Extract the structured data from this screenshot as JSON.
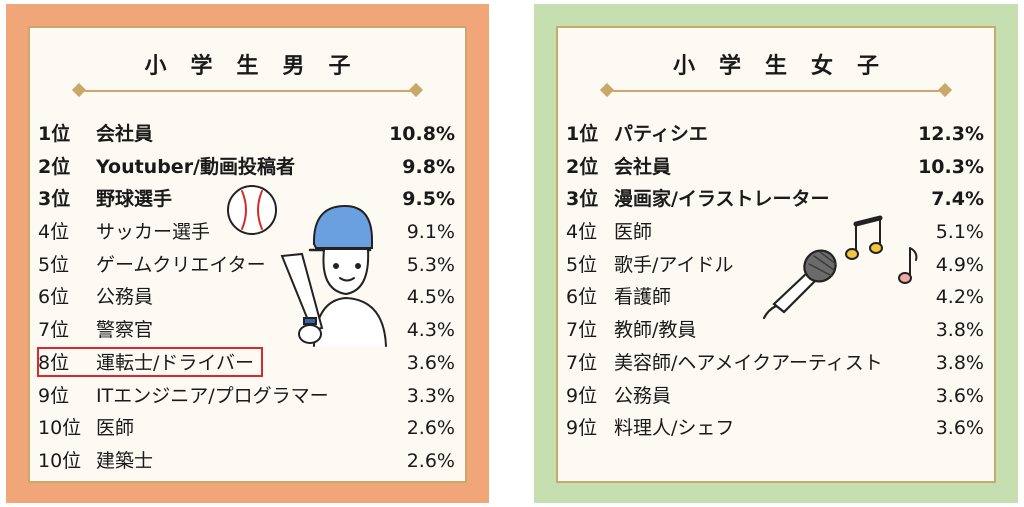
{
  "boys": {
    "title": "小学生男子",
    "rows": [
      {
        "rank": "1位",
        "name": "会社員",
        "pct": "10.8%",
        "top": true
      },
      {
        "rank": "2位",
        "name": "Youtuber/動画投稿者",
        "pct": "9.8%",
        "top": true
      },
      {
        "rank": "3位",
        "name": "野球選手",
        "pct": "9.5%",
        "top": true
      },
      {
        "rank": "4位",
        "name": "サッカー選手",
        "pct": "9.1%",
        "top": false
      },
      {
        "rank": "5位",
        "name": "ゲームクリエイター",
        "pct": "5.3%",
        "top": false
      },
      {
        "rank": "6位",
        "name": "公務員",
        "pct": "4.5%",
        "top": false
      },
      {
        "rank": "7位",
        "name": "警察官",
        "pct": "4.3%",
        "top": false
      },
      {
        "rank": "8位",
        "name": "運転士/ドライバー",
        "pct": "3.6%",
        "top": false
      },
      {
        "rank": "9位",
        "name": "ITエンジニア/プログラマー",
        "pct": "3.3%",
        "top": false
      },
      {
        "rank": "10位",
        "name": "医師",
        "pct": "2.6%",
        "top": false
      },
      {
        "rank": "10位",
        "name": "建築士",
        "pct": "2.6%",
        "top": false
      }
    ]
  },
  "girls": {
    "title": "小学生女子",
    "rows": [
      {
        "rank": "1位",
        "name": "パティシエ",
        "pct": "12.3%",
        "top": true
      },
      {
        "rank": "2位",
        "name": "会社員",
        "pct": "10.3%",
        "top": true
      },
      {
        "rank": "3位",
        "name": "漫画家/イラストレーター",
        "pct": "7.4%",
        "top": true
      },
      {
        "rank": "4位",
        "name": "医師",
        "pct": "5.1%",
        "top": false
      },
      {
        "rank": "5位",
        "name": "歌手/アイドル",
        "pct": "4.9%",
        "top": false
      },
      {
        "rank": "6位",
        "name": "看護師",
        "pct": "4.2%",
        "top": false
      },
      {
        "rank": "7位",
        "name": "教師/教員",
        "pct": "3.8%",
        "top": false
      },
      {
        "rank": "7位",
        "name": "美容師/ヘアメイクアーティスト",
        "pct": "3.8%",
        "top": false
      },
      {
        "rank": "9位",
        "name": "公務員",
        "pct": "3.6%",
        "top": false
      },
      {
        "rank": "9位",
        "name": "料理人/シェフ",
        "pct": "3.6%",
        "top": false
      }
    ]
  },
  "colors": {
    "boys_frame": "#f0a679",
    "girls_frame": "#c6dfb1",
    "gold": "#c9a86a",
    "highlight": "#d62b2b"
  }
}
